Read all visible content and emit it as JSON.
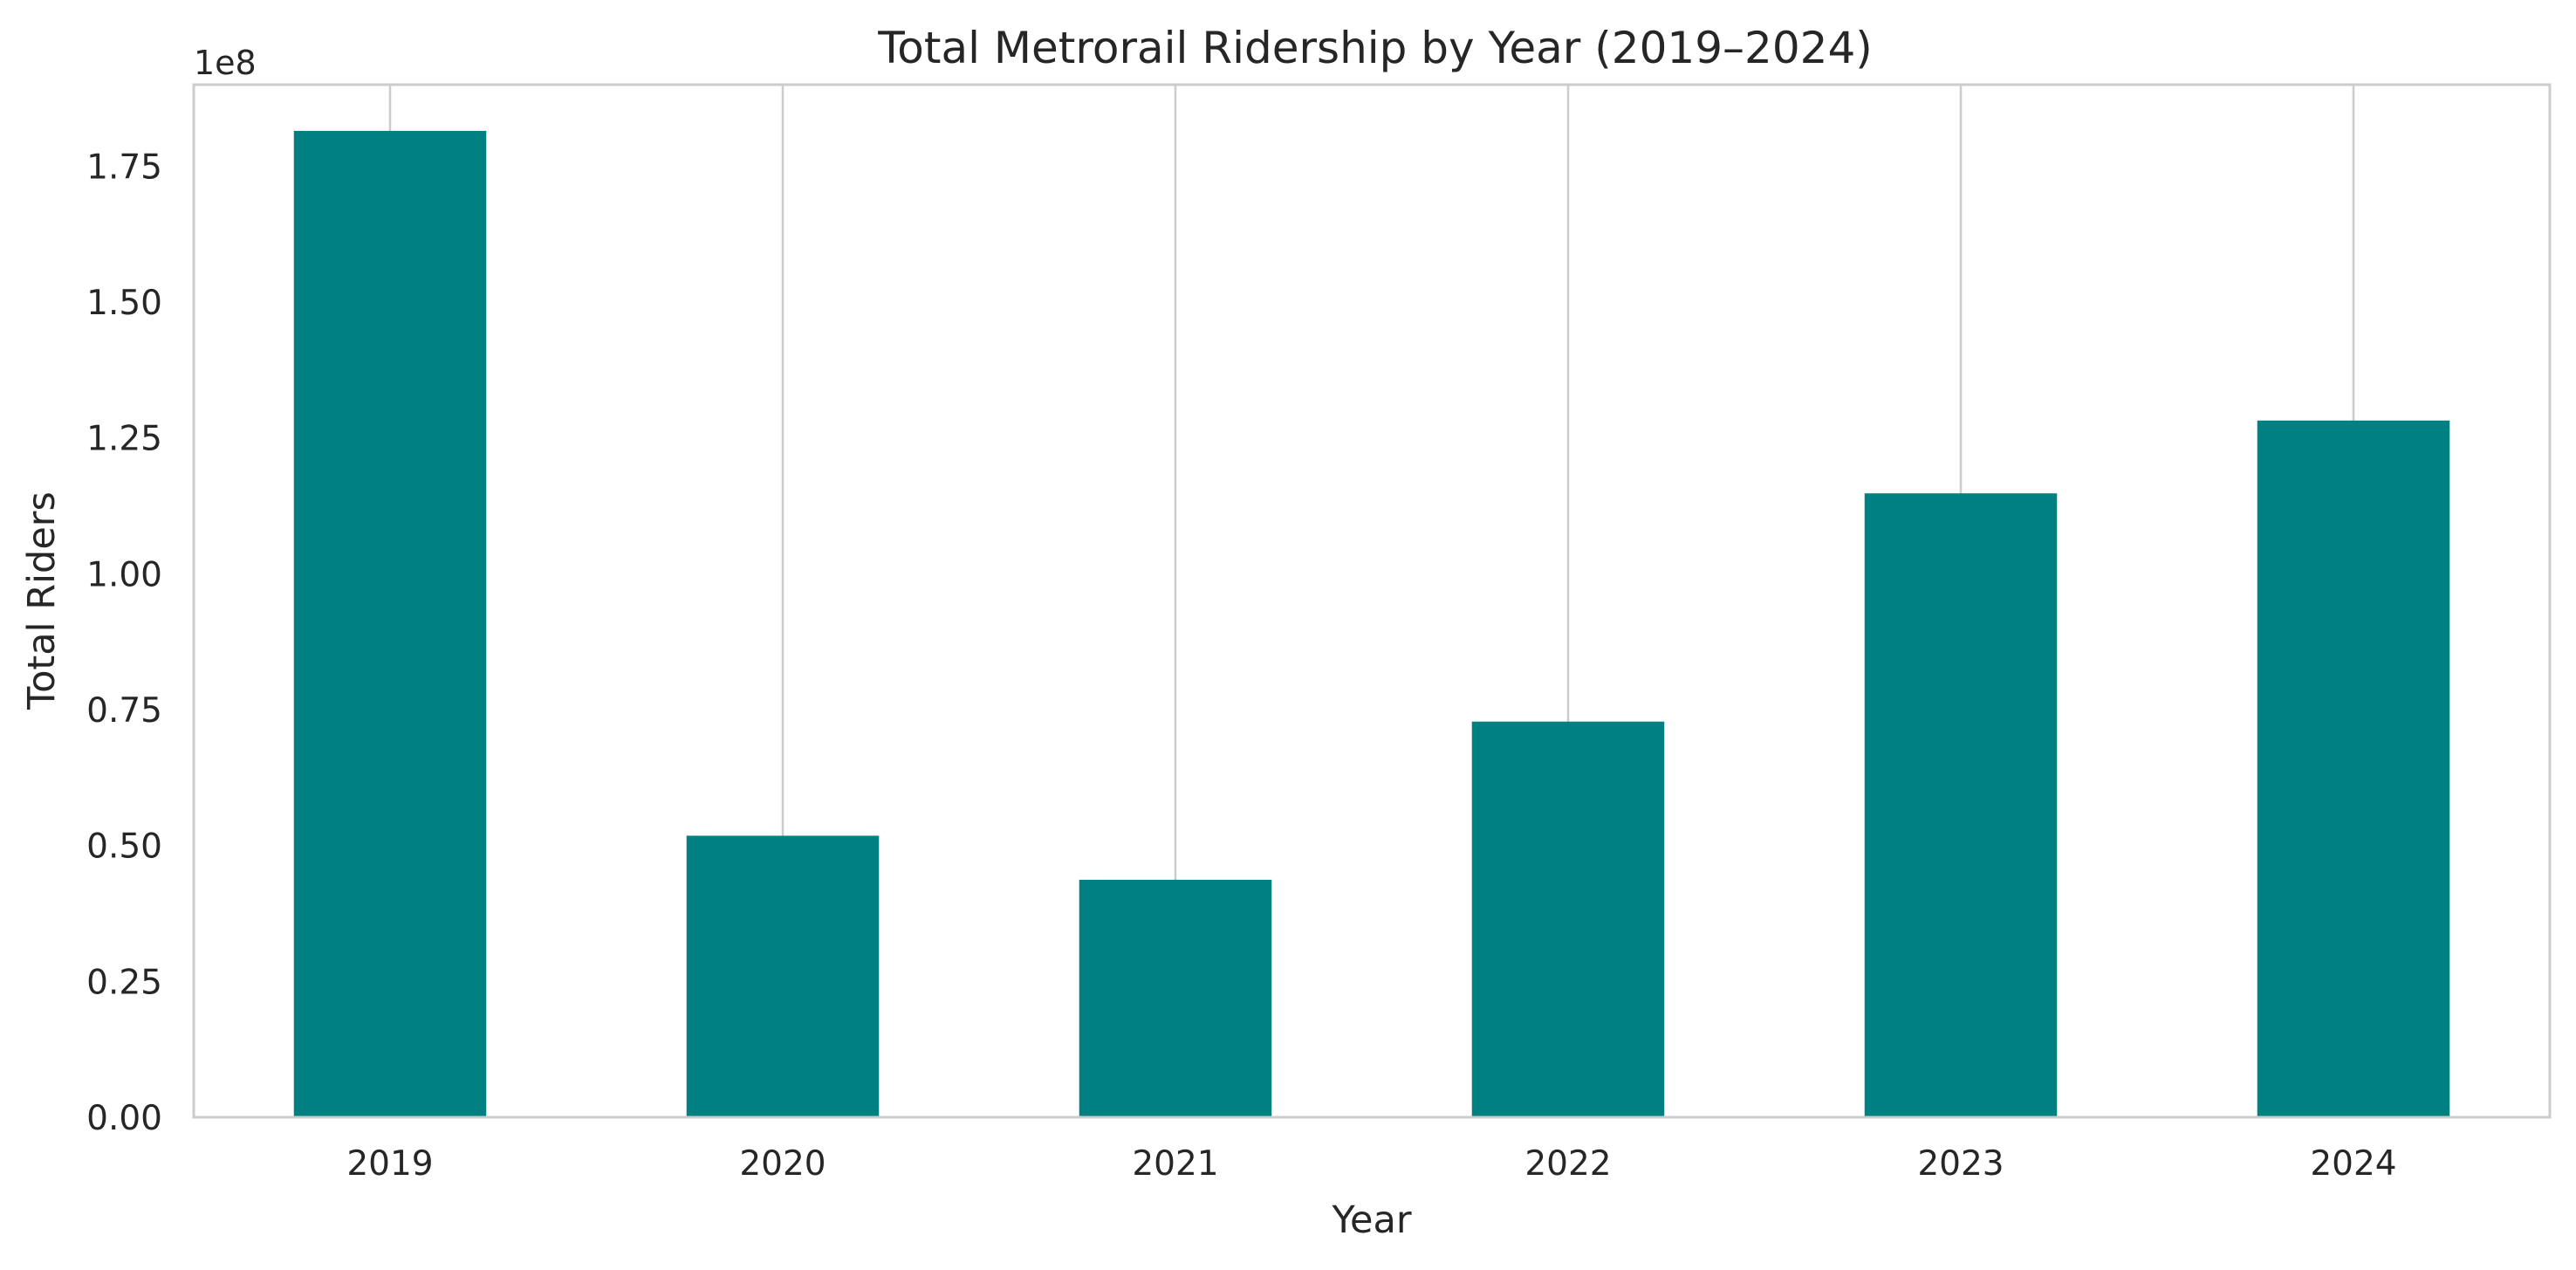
{
  "chart_data": {
    "type": "bar",
    "title": "Total Metrorail Ridership by Year (2019–2024)",
    "xlabel": "Year",
    "ylabel": "Total Riders",
    "y_offset_label": "1e8",
    "categories": [
      "2019",
      "2020",
      "2021",
      "2022",
      "2023",
      "2024"
    ],
    "values": [
      181500000,
      51800000,
      43700000,
      72800000,
      114800000,
      128200000
    ],
    "ylim": [
      0,
      190000000
    ],
    "y_ticks": [
      0,
      25000000,
      50000000,
      75000000,
      100000000,
      125000000,
      150000000,
      175000000
    ],
    "y_tick_labels": [
      "0.00",
      "0.25",
      "0.50",
      "0.75",
      "1.00",
      "1.25",
      "1.50",
      "1.75"
    ],
    "grid": "vertical",
    "legend": "none",
    "bar_color": "#008080",
    "grid_color": "#cccccc"
  }
}
